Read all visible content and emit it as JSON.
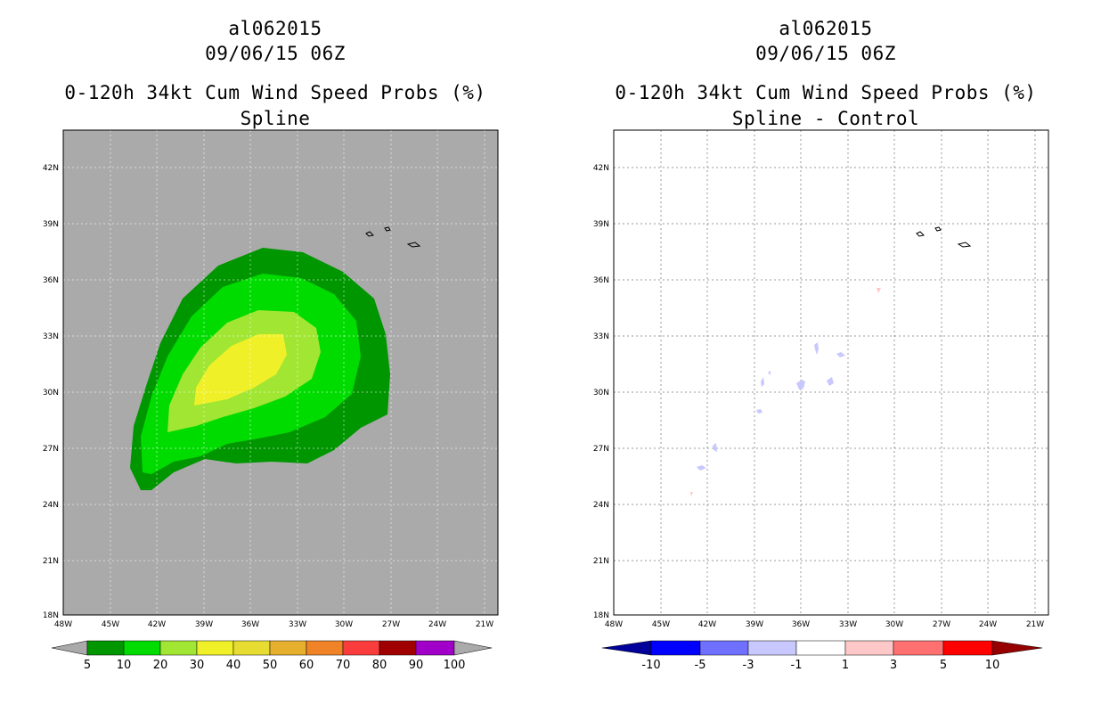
{
  "panels": [
    {
      "storm_id": "al062015",
      "datetime": "09/06/15 06Z",
      "product": "0-120h 34kt Cum Wind Speed Probs (%)",
      "subtitle": "Spline",
      "map_background": "#aaaaaa",
      "colorbar": {
        "labels": [
          "5",
          "10",
          "20",
          "30",
          "40",
          "50",
          "60",
          "70",
          "80",
          "90",
          "100"
        ],
        "colors": [
          "#009600",
          "#00dc00",
          "#a0e632",
          "#f0f028",
          "#e6dc32",
          "#e6af2d",
          "#f08228",
          "#fa3c3c",
          "#a00000",
          "#a000c8"
        ],
        "under_color": "#aaaaaa",
        "over_color": "#aaaaaa"
      }
    },
    {
      "storm_id": "al062015",
      "datetime": "09/06/15 06Z",
      "product": "0-120h 34kt Cum Wind Speed Probs (%)",
      "subtitle": "Spline - Control",
      "map_background": "#ffffff",
      "colorbar": {
        "labels": [
          "-10",
          "-5",
          "-3",
          "-1",
          "1",
          "3",
          "5",
          "10"
        ],
        "colors": [
          "#0000ff",
          "#7070ff",
          "#c8c8ff",
          "#ffffff",
          "#ffc8c8",
          "#ff7070",
          "#ff0000"
        ],
        "under_color": "#00009b",
        "over_color": "#960000"
      }
    }
  ],
  "axes": {
    "lat_labels": [
      "42N",
      "39N",
      "36N",
      "33N",
      "30N",
      "27N",
      "24N",
      "21N",
      "18N"
    ],
    "lon_labels": [
      "48W",
      "45W",
      "42W",
      "39W",
      "36W",
      "33W",
      "30W",
      "27W",
      "24W",
      "21W"
    ]
  }
}
